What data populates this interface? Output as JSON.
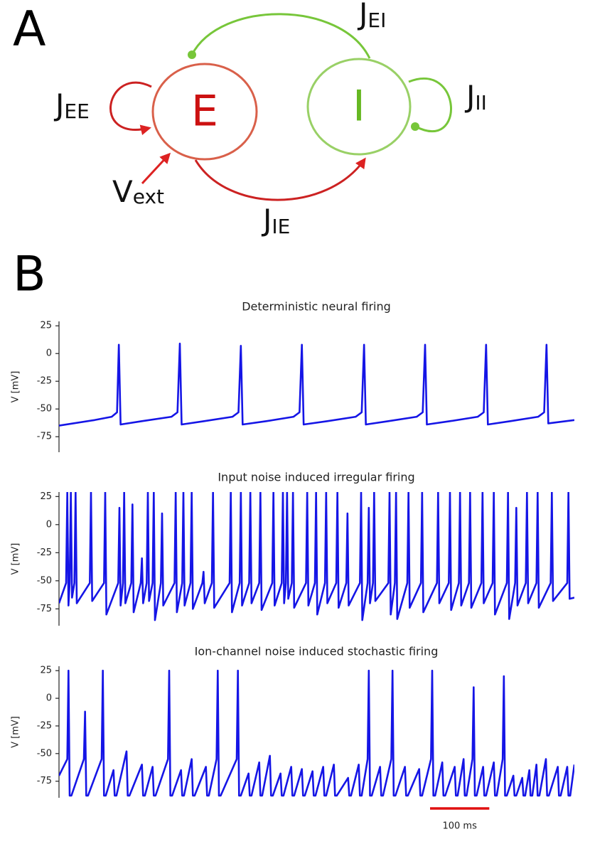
{
  "diagram": {
    "panel_label": "A",
    "nodes": [
      {
        "label": "E",
        "color": "#cc1111",
        "stroke": "#d9604a"
      },
      {
        "label": "I",
        "color": "#66b822",
        "stroke": "#99d066"
      }
    ],
    "edges": [
      {
        "symbol": "J",
        "subscript": "EE"
      },
      {
        "symbol": "J",
        "subscript": "EI"
      },
      {
        "symbol": "J",
        "subscript": "II"
      },
      {
        "symbol": "J",
        "subscript": "IE"
      }
    ],
    "input": {
      "symbol": "V",
      "subscript": "ext"
    }
  },
  "panel_b_label": "B",
  "chart_data": [
    {
      "type": "line",
      "title": "Deterministic neural firing",
      "y_label": "V [mV]",
      "xlim": [
        0,
        870
      ],
      "ylim": [
        -89,
        29
      ],
      "yticks": [
        25,
        0,
        -25,
        -50,
        -75
      ],
      "series": [
        {
          "color": "#1515e6",
          "x": [
            0,
            60,
            89,
            98,
            101,
            104,
            140,
            190,
            200,
            204,
            207,
            245,
            293,
            303,
            307,
            310,
            350,
            396,
            406,
            410,
            413,
            453,
            501,
            511,
            515,
            518,
            556,
            604,
            614,
            618,
            621,
            660,
            707,
            717,
            721,
            724,
            762,
            809,
            819,
            823,
            826,
            870
          ],
          "values": [
            -65,
            -60,
            -57,
            -53,
            8,
            -64,
            -61,
            -57,
            -53,
            9,
            -64,
            -61,
            -57,
            -53,
            7,
            -64,
            -61,
            -57,
            -53,
            8,
            -64,
            -61,
            -57,
            -53,
            8,
            -64,
            -61,
            -57,
            -53,
            8,
            -64,
            -61,
            -57,
            -53,
            8,
            -64,
            -61,
            -57,
            -53,
            8,
            -63,
            -60
          ]
        }
      ]
    },
    {
      "type": "line",
      "title": "Input noise  induced  irregular firing",
      "y_label": "V [mV]",
      "xlim": [
        0,
        870
      ],
      "ylim": [
        -90,
        29
      ],
      "yticks": [
        25,
        0,
        -25,
        -50,
        -75
      ],
      "series": [
        {
          "color": "#1515e6",
          "x": [
            0,
            12,
            14,
            16,
            18,
            20,
            22,
            26,
            28,
            30,
            52,
            54,
            56,
            76,
            78,
            80,
            100,
            102,
            104,
            108,
            110,
            112,
            122,
            124,
            126,
            138,
            140,
            142,
            148,
            150,
            152,
            158,
            160,
            162,
            172,
            174,
            176,
            195,
            197,
            199,
            208,
            210,
            212,
            222,
            224,
            226,
            242,
            244,
            246,
            258,
            260,
            262,
            288,
            290,
            292,
            305,
            307,
            309,
            321,
            323,
            325,
            338,
            340,
            342,
            360,
            362,
            364,
            376,
            378,
            380,
            383,
            385,
            387,
            393,
            395,
            397,
            417,
            419,
            421,
            432,
            434,
            436,
            449,
            451,
            453,
            468,
            470,
            472,
            485,
            487,
            489,
            508,
            510,
            512,
            521,
            523,
            525,
            530,
            532,
            534,
            556,
            558,
            560,
            567,
            569,
            571,
            588,
            590,
            592,
            611,
            613,
            615,
            638,
            640,
            642,
            658,
            660,
            662,
            675,
            677,
            679,
            692,
            694,
            696,
            713,
            715,
            717,
            732,
            734,
            736,
            756,
            758,
            760,
            770,
            772,
            774,
            788,
            790,
            792,
            806,
            808,
            810,
            830,
            832,
            834,
            858,
            860,
            862,
            870
          ],
          "values": [
            -70,
            -52,
            29,
            -72,
            -52,
            29,
            -65,
            -52,
            29,
            -70,
            -52,
            29,
            -68,
            -52,
            29,
            -80,
            -52,
            15,
            -72,
            -52,
            29,
            -70,
            -52,
            18,
            -78,
            -52,
            -30,
            -70,
            -52,
            29,
            -68,
            -52,
            29,
            -85,
            -52,
            10,
            -72,
            -52,
            29,
            -78,
            -52,
            29,
            -72,
            -52,
            29,
            -75,
            -52,
            -42,
            -70,
            -52,
            29,
            -74,
            -52,
            29,
            -78,
            -52,
            29,
            -72,
            -52,
            29,
            -70,
            -52,
            29,
            -76,
            -52,
            29,
            -72,
            -52,
            29,
            -70,
            -52,
            29,
            -66,
            -52,
            29,
            -74,
            -52,
            29,
            -72,
            -52,
            29,
            -80,
            -52,
            29,
            -70,
            -52,
            29,
            -74,
            -52,
            10,
            -72,
            -52,
            29,
            -85,
            -52,
            15,
            -70,
            -52,
            29,
            -68,
            -52,
            29,
            -80,
            -52,
            29,
            -84,
            -52,
            29,
            -74,
            -52,
            29,
            -78,
            -52,
            29,
            -70,
            -52,
            29,
            -76,
            -52,
            29,
            -72,
            -52,
            29,
            -74,
            -52,
            29,
            -70,
            -52,
            29,
            -80,
            -52,
            29,
            -84,
            -52,
            15,
            -72,
            -52,
            29,
            -70,
            -52,
            29,
            -74,
            -52,
            29,
            -68,
            -52,
            29,
            -66,
            -65
          ]
        }
      ]
    },
    {
      "type": "line",
      "title": "Ion-channel noise induced stochastic firing",
      "y_label": "V [mV]",
      "xlim": [
        0,
        870
      ],
      "ylim": [
        -90,
        29
      ],
      "yticks": [
        25,
        0,
        -25,
        -50,
        -75
      ],
      "scale_bar": {
        "value": 100,
        "label": "100 ms",
        "color": "#e01010"
      },
      "series": [
        {
          "color": "#1515e6",
          "x": [
            0,
            14,
            16,
            18,
            21,
            42,
            44,
            46,
            49,
            72,
            74,
            76,
            79,
            92,
            94,
            97,
            114,
            116,
            119,
            140,
            142,
            145,
            158,
            160,
            163,
            184,
            186,
            188,
            191,
            206,
            208,
            211,
            224,
            226,
            229,
            248,
            250,
            253,
            266,
            268,
            270,
            273,
            300,
            302,
            304,
            307,
            320,
            322,
            325,
            338,
            340,
            343,
            356,
            358,
            361,
            374,
            376,
            379,
            392,
            394,
            397,
            410,
            412,
            415,
            428,
            430,
            433,
            446,
            448,
            451,
            464,
            466,
            469,
            488,
            490,
            493,
            506,
            508,
            511,
            521,
            523,
            525,
            528,
            542,
            544,
            547,
            561,
            563,
            565,
            568,
            584,
            586,
            589,
            608,
            610,
            613,
            628,
            630,
            632,
            635,
            647,
            649,
            652,
            668,
            670,
            673,
            683,
            685,
            688,
            698,
            700,
            702,
            705,
            716,
            718,
            721,
            734,
            736,
            739,
            749,
            751,
            753,
            756,
            767,
            769,
            772,
            782,
            784,
            787,
            794,
            796,
            799,
            806,
            808,
            811,
            822,
            824,
            827,
            842,
            844,
            847,
            858,
            860,
            863,
            870
          ],
          "values": [
            -70,
            -55,
            25,
            -88,
            -88,
            -55,
            -12,
            -88,
            -88,
            -55,
            25,
            -88,
            -88,
            -65,
            -88,
            -88,
            -48,
            -88,
            -88,
            -60,
            -88,
            -88,
            -62,
            -88,
            -88,
            -55,
            25,
            -88,
            -88,
            -65,
            -88,
            -88,
            -55,
            -88,
            -88,
            -62,
            -88,
            -88,
            -55,
            25,
            -88,
            -88,
            -55,
            25,
            -88,
            -88,
            -68,
            -88,
            -88,
            -58,
            -88,
            -88,
            -52,
            -88,
            -88,
            -68,
            -88,
            -88,
            -62,
            -88,
            -88,
            -64,
            -88,
            -88,
            -66,
            -88,
            -88,
            -62,
            -88,
            -88,
            -60,
            -88,
            -88,
            -72,
            -88,
            -88,
            -60,
            -88,
            -88,
            -55,
            25,
            -88,
            -88,
            -62,
            -88,
            -88,
            -55,
            25,
            -88,
            -88,
            -62,
            -88,
            -88,
            -64,
            -88,
            -88,
            -55,
            25,
            -88,
            -88,
            -58,
            -88,
            -88,
            -62,
            -88,
            -88,
            -55,
            -88,
            -88,
            -55,
            10,
            -88,
            -88,
            -62,
            -88,
            -88,
            -58,
            -88,
            -88,
            -55,
            20,
            -88,
            -88,
            -70,
            -88,
            -88,
            -72,
            -88,
            -88,
            -65,
            -88,
            -88,
            -60,
            -88,
            -88,
            -55,
            -88,
            -88,
            -62,
            -88,
            -88,
            -62,
            -88,
            -88,
            -60
          ]
        }
      ]
    }
  ]
}
